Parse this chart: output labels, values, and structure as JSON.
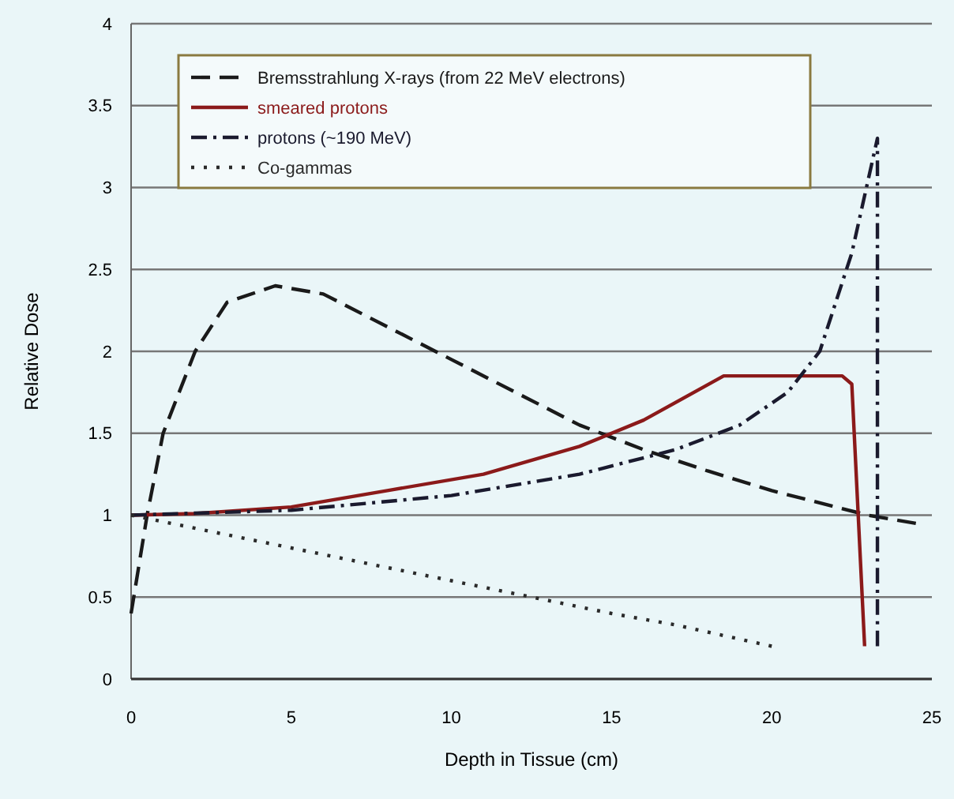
{
  "chart_data": {
    "type": "line",
    "xlabel": "Depth in Tissue (cm)",
    "ylabel": "Relative Dose",
    "xlim": [
      0,
      25
    ],
    "xticks": [
      0,
      5,
      10,
      15,
      20,
      25
    ],
    "ylim": [
      0,
      4
    ],
    "yticks": [
      0,
      0.5,
      1,
      1.5,
      2,
      2.5,
      3,
      3.5,
      4
    ],
    "grid": "y",
    "legend": "top left",
    "series": [
      {
        "name": "Bremsstrahlung X-rays (from 22 MeV electrons)",
        "color": "#1a1a1a",
        "line_style": "dashed",
        "x": [
          0,
          0.5,
          1,
          2,
          3,
          4.5,
          6,
          8,
          10,
          12,
          14,
          16,
          18,
          20,
          22,
          23,
          24.5
        ],
        "values": [
          0.4,
          1.0,
          1.5,
          2.0,
          2.3,
          2.4,
          2.35,
          2.15,
          1.95,
          1.75,
          1.55,
          1.4,
          1.27,
          1.15,
          1.05,
          1.0,
          0.95
        ]
      },
      {
        "name": "smeared protons",
        "color": "#8b1a1a",
        "line_style": "solid",
        "x": [
          0,
          2,
          5,
          8,
          11,
          14,
          16,
          18.5,
          22.2,
          22.5,
          22.9
        ],
        "values": [
          1,
          1.01,
          1.05,
          1.15,
          1.25,
          1.42,
          1.58,
          1.85,
          1.85,
          1.8,
          0.2
        ]
      },
      {
        "name": "protons (~190 MeV)",
        "color": "#1a1a2e",
        "line_style": "dashdot",
        "x": [
          0,
          5,
          10,
          14,
          17,
          19,
          20.5,
          21.5,
          22.5,
          23.3,
          23.3
        ],
        "values": [
          1,
          1.03,
          1.12,
          1.25,
          1.4,
          1.55,
          1.75,
          2.0,
          2.6,
          3.3,
          0.2
        ]
      },
      {
        "name": "Co-gammas",
        "color": "#2a2a2a",
        "line_style": "dotted",
        "x": [
          0,
          5,
          10,
          15,
          17,
          20
        ],
        "values": [
          1,
          0.8,
          0.6,
          0.4,
          0.33,
          0.2
        ]
      }
    ]
  }
}
